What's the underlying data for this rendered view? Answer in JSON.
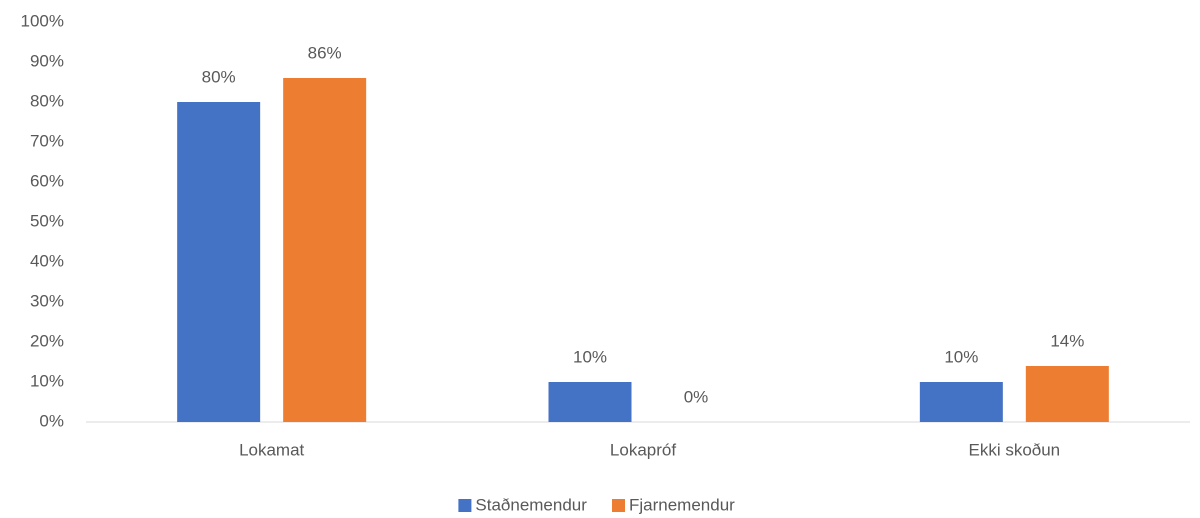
{
  "chart_data": {
    "type": "bar",
    "categories": [
      "Lokamat",
      "Lokapróf",
      "Ekki skoðun"
    ],
    "series": [
      {
        "name": "Staðnemendur",
        "color": "#4472c4",
        "values": [
          80,
          10,
          10
        ],
        "value_labels": [
          "80%",
          "10%",
          "10%"
        ]
      },
      {
        "name": "Fjarnemendur",
        "color": "#ed7d31",
        "values": [
          86,
          0,
          14
        ],
        "value_labels": [
          "86%",
          "0%",
          "14%"
        ]
      }
    ],
    "ylim": [
      0,
      100
    ],
    "yticks": [
      {
        "value": 0,
        "label": "0%"
      },
      {
        "value": 10,
        "label": "10%"
      },
      {
        "value": 20,
        "label": "20%"
      },
      {
        "value": 30,
        "label": "30%"
      },
      {
        "value": 40,
        "label": "40%"
      },
      {
        "value": 50,
        "label": "50%"
      },
      {
        "value": 60,
        "label": "60%"
      },
      {
        "value": 70,
        "label": "70%"
      },
      {
        "value": 80,
        "label": "80%"
      },
      {
        "value": 90,
        "label": "90%"
      },
      {
        "value": 100,
        "label": "100%"
      }
    ],
    "grid": false,
    "legend": "bottom"
  }
}
